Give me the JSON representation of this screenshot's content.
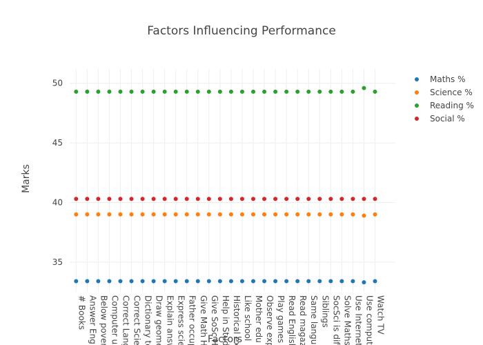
{
  "chart_data": {
    "type": "scatter",
    "title": "Factors Influencing Performance",
    "xlabel": "Factors",
    "ylabel": "Marks",
    "ylim": [
      32.5,
      51.2
    ],
    "yticks": [
      35,
      40,
      45,
      50
    ],
    "grid": true,
    "legend_position": "top-right",
    "categories": [
      "# Books",
      "Answer Engli",
      "Below povert",
      "Computer us",
      "Correct Lang",
      "Correct Scie",
      "Dictionary to",
      "Draw geomet",
      "Explain answ",
      "Express scie",
      "Father occup",
      "Give Math Hw",
      "Give SoSc Hw",
      "Help in Stud",
      "Historical ex",
      "Like school",
      "Mother edu",
      "Observe exp",
      "Play games",
      "Read English",
      "Read magazi",
      "Same langua",
      "Siblings",
      "SocSci is diffi",
      "Solve Maths",
      "Use Internet",
      "Use compute",
      "Watch TV"
    ],
    "series": [
      {
        "name": "Maths %",
        "color": "#1f77b4",
        "values": [
          33.4,
          33.4,
          33.4,
          33.4,
          33.4,
          33.4,
          33.4,
          33.4,
          33.4,
          33.4,
          33.4,
          33.4,
          33.4,
          33.4,
          33.4,
          33.4,
          33.4,
          33.4,
          33.4,
          33.4,
          33.4,
          33.4,
          33.4,
          33.4,
          33.4,
          33.4,
          33.3,
          33.4
        ]
      },
      {
        "name": "Science %",
        "color": "#ff7f0e",
        "values": [
          39.0,
          39.0,
          39.0,
          39.0,
          39.0,
          39.0,
          39.0,
          39.0,
          39.0,
          39.0,
          39.0,
          39.0,
          39.0,
          39.0,
          39.0,
          39.0,
          39.0,
          39.0,
          39.0,
          39.0,
          39.0,
          39.0,
          39.0,
          39.0,
          39.0,
          39.0,
          38.9,
          39.0
        ]
      },
      {
        "name": "Reading %",
        "color": "#2ca02c",
        "values": [
          49.3,
          49.3,
          49.3,
          49.3,
          49.3,
          49.3,
          49.3,
          49.3,
          49.3,
          49.3,
          49.3,
          49.3,
          49.3,
          49.3,
          49.3,
          49.3,
          49.3,
          49.3,
          49.3,
          49.3,
          49.3,
          49.3,
          49.3,
          49.3,
          49.3,
          49.3,
          49.6,
          49.3
        ]
      },
      {
        "name": "Social %",
        "color": "#d62728",
        "values": [
          40.3,
          40.3,
          40.3,
          40.3,
          40.3,
          40.3,
          40.3,
          40.3,
          40.3,
          40.3,
          40.3,
          40.3,
          40.3,
          40.3,
          40.3,
          40.3,
          40.3,
          40.3,
          40.3,
          40.3,
          40.3,
          40.3,
          40.3,
          40.3,
          40.3,
          40.3,
          40.3,
          40.3
        ]
      }
    ]
  }
}
